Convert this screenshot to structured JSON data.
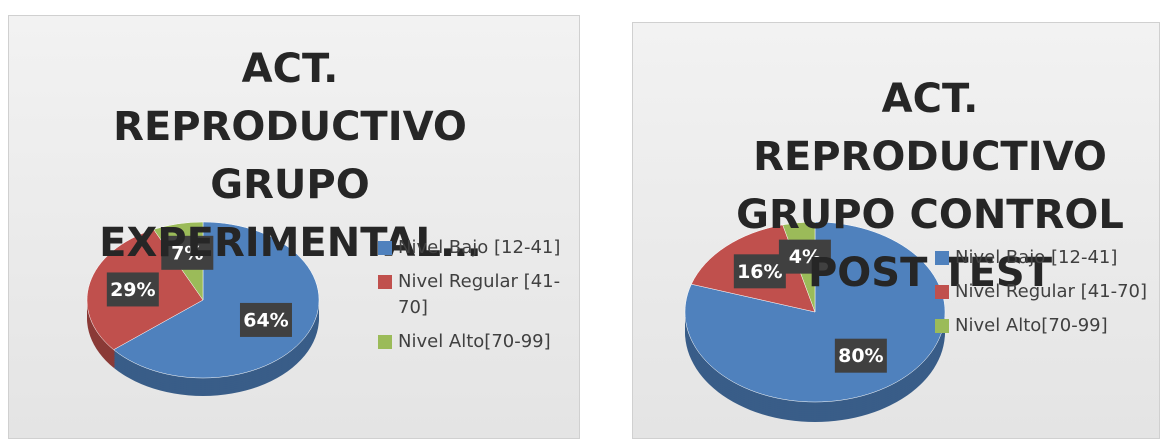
{
  "chart_data": [
    {
      "type": "pie",
      "title": "ACT. REPRODUCTIVO GRUPO EXPERIMENTAL…",
      "categories": [
        "Nivel Bajo [12-41]",
        "Nivel Regular [41-70]",
        "Nivel Alto[70-99]"
      ],
      "values": [
        64,
        29,
        7
      ],
      "value_labels": [
        "64%",
        "29%",
        "7%"
      ],
      "colors": [
        "#4f81bd",
        "#c0504d",
        "#9bbb59"
      ],
      "legend": "right"
    },
    {
      "type": "pie",
      "title": "ACT. REPRODUCTIVO GRUPO CONTROL POST TEST",
      "categories": [
        "Nivel Bajo [12-41]",
        "Nivel Regular [41-70]",
        "Nivel Alto[70-99]"
      ],
      "values": [
        80,
        16,
        4
      ],
      "value_labels": [
        "80%",
        "16%",
        "4%"
      ],
      "colors": [
        "#4f81bd",
        "#c0504d",
        "#9bbb59"
      ],
      "legend": "right"
    }
  ]
}
